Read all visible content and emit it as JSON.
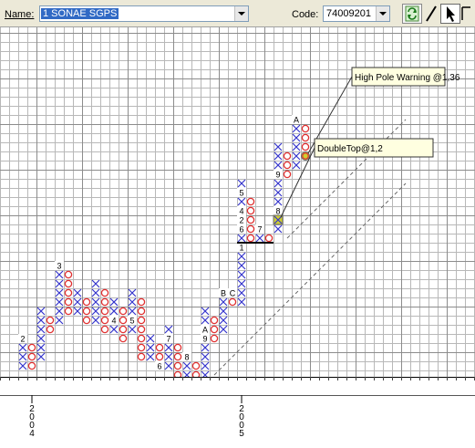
{
  "toolbar": {
    "name_label": "Name:",
    "name_value": "1 SONAE SGPS",
    "code_label": "Code:",
    "code_value": "74009201"
  },
  "icons": {
    "refresh": "refresh-icon",
    "line_tool": "line-tool-icon",
    "pointer_tool": "pointer-icon",
    "extra_tool": "zoom-icon"
  },
  "colors": {
    "x_mark": "#3333cc",
    "o_mark": "#e03030",
    "grid": "#b8b8b8",
    "signal_fill": "#cfcf30",
    "annotation_fill": "#ffffe0"
  },
  "chart_data": {
    "type": "point-and-figure",
    "columns": [
      {
        "type": "X",
        "low": 0,
        "high": 3,
        "labels": [
          {
            "row": 3,
            "text": "2"
          }
        ]
      },
      {
        "type": "O",
        "low": 0,
        "high": 2
      },
      {
        "type": "X",
        "low": 1,
        "high": 6
      },
      {
        "type": "O",
        "low": 4,
        "high": 5
      },
      {
        "type": "X",
        "low": 5,
        "high": 11,
        "labels": [
          {
            "row": 11,
            "text": "3"
          }
        ]
      },
      {
        "type": "O",
        "low": 6,
        "high": 10
      },
      {
        "type": "X",
        "low": 6,
        "high": 8
      },
      {
        "type": "O",
        "low": 5,
        "high": 7
      },
      {
        "type": "X",
        "low": 5,
        "high": 9
      },
      {
        "type": "O",
        "low": 4,
        "high": 8
      },
      {
        "type": "X",
        "low": 4,
        "high": 7,
        "labels": [
          {
            "row": 5,
            "text": "4"
          }
        ]
      },
      {
        "type": "O",
        "low": 3,
        "high": 6
      },
      {
        "type": "X",
        "low": 4,
        "high": 8,
        "labels": [
          {
            "row": 5,
            "text": "5"
          }
        ]
      },
      {
        "type": "O",
        "low": 1,
        "high": 7
      },
      {
        "type": "X",
        "low": 1,
        "high": 3
      },
      {
        "type": "O",
        "low": 0,
        "high": 2,
        "labels": [
          {
            "row": 0,
            "text": "6"
          }
        ]
      },
      {
        "type": "X",
        "low": 0,
        "high": 4,
        "labels": [
          {
            "row": 3,
            "text": "7"
          }
        ]
      },
      {
        "type": "O",
        "low": -1,
        "high": 2
      },
      {
        "type": "X",
        "low": -1,
        "high": 1,
        "labels": [
          {
            "row": 1,
            "text": "8"
          }
        ]
      },
      {
        "type": "O",
        "low": -1,
        "high": 0
      },
      {
        "type": "X",
        "low": -1,
        "high": 6,
        "labels": [
          {
            "row": 4,
            "text": "A"
          },
          {
            "row": 3,
            "text": "9"
          }
        ]
      },
      {
        "type": "O",
        "low": 3,
        "high": 5
      },
      {
        "type": "X",
        "low": 4,
        "high": 8,
        "labels": [
          {
            "row": 8,
            "text": "B"
          }
        ]
      },
      {
        "type": "O",
        "low": 7,
        "high": 7,
        "labels": [
          {
            "row": 8,
            "text": "C"
          }
        ]
      },
      {
        "type": "X",
        "low": 7,
        "high": 20,
        "labels": [
          {
            "row": 13,
            "text": "1"
          },
          {
            "row": 16,
            "text": "2"
          },
          {
            "row": 17,
            "text": "4"
          },
          {
            "row": 19,
            "text": "5"
          },
          {
            "row": 15,
            "text": "6"
          }
        ]
      },
      {
        "type": "O",
        "low": 14,
        "high": 18
      },
      {
        "type": "X",
        "low": 14,
        "high": 15,
        "labels": [
          {
            "row": 15,
            "text": "7"
          }
        ]
      },
      {
        "type": "O",
        "low": 14,
        "high": 14
      },
      {
        "type": "X",
        "low": 15,
        "high": 24,
        "labels": [
          {
            "row": 17,
            "text": "8"
          },
          {
            "row": 21,
            "text": "9"
          }
        ]
      },
      {
        "type": "O",
        "low": 21,
        "high": 23
      },
      {
        "type": "X",
        "low": 22,
        "high": 27,
        "labels": [
          {
            "row": 27,
            "text": "A"
          }
        ]
      },
      {
        "type": "O",
        "low": 23,
        "high": 26
      }
    ],
    "annotations": [
      {
        "text": "High Pole Warning @1,36",
        "col": 31,
        "row": 23
      },
      {
        "text": "DoubleTop@1,2",
        "col": 28,
        "row": 16
      }
    ],
    "x_axis_labels": [
      {
        "text": "2004",
        "col": 1
      },
      {
        "text": "2005",
        "col": 24
      }
    ]
  }
}
